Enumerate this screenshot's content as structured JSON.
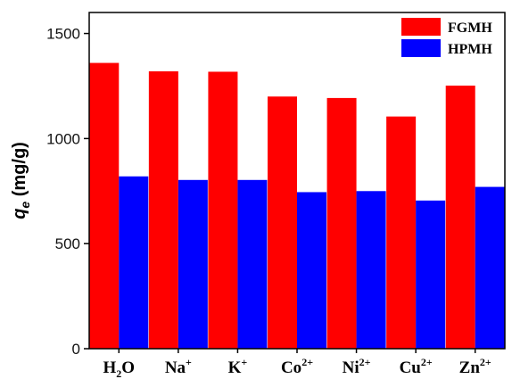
{
  "chart_data": {
    "type": "bar",
    "categories": [
      {
        "base": "H",
        "sub": "2",
        "tail": "O",
        "sup": ""
      },
      {
        "base": "Na",
        "sub": "",
        "tail": "",
        "sup": "+"
      },
      {
        "base": "K",
        "sub": "",
        "tail": "",
        "sup": "+"
      },
      {
        "base": "Co",
        "sub": "",
        "tail": "",
        "sup": "2+"
      },
      {
        "base": "Ni",
        "sub": "",
        "tail": "",
        "sup": "2+"
      },
      {
        "base": "Cu",
        "sub": "",
        "tail": "",
        "sup": "2+"
      },
      {
        "base": "Zn",
        "sub": "",
        "tail": "",
        "sup": "2+"
      }
    ],
    "series": [
      {
        "name": "FGMH",
        "color": "#ff0000",
        "values": [
          1360,
          1320,
          1318,
          1200,
          1193,
          1105,
          1252
        ]
      },
      {
        "name": "HPMH",
        "color": "#0000ff",
        "values": [
          820,
          803,
          803,
          745,
          750,
          705,
          770
        ]
      }
    ],
    "ylabel": {
      "italic": "q",
      "sub": "e",
      "rest": " (mg/g)"
    },
    "ylim": [
      0,
      1600
    ],
    "yticks": [
      0,
      500,
      1000,
      1500
    ],
    "grid": false,
    "legend_position": "top-right"
  }
}
